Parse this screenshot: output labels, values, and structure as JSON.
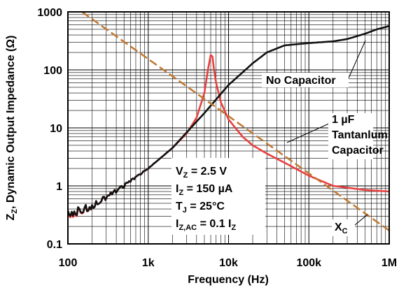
{
  "chart_data": {
    "type": "line",
    "xlabel": "Frequency (Hz)",
    "ylabel": "Z",
    "ylabel_sub": "Z",
    "ylabel_rest": ", Dynamic Output Impedance (Ω)",
    "x_scale": "log",
    "y_scale": "log",
    "xlim": [
      100,
      1000000
    ],
    "ylim": [
      0.1,
      1000
    ],
    "grid": true,
    "x_ticks": [
      {
        "value": 100,
        "label": "100"
      },
      {
        "value": 1000,
        "label": "1k"
      },
      {
        "value": 10000,
        "label": "10k"
      },
      {
        "value": 100000,
        "label": "100k"
      },
      {
        "value": 1000000,
        "label": "1M"
      }
    ],
    "y_ticks": [
      {
        "value": 0.1,
        "label": "0.1"
      },
      {
        "value": 1,
        "label": "1"
      },
      {
        "value": 10,
        "label": "10"
      },
      {
        "value": 100,
        "label": "100"
      },
      {
        "value": 1000,
        "label": "1000"
      }
    ],
    "series": [
      {
        "label": "1 µF Tantanlum Capacitor",
        "color": "#e8403f",
        "x": [
          100,
          200,
          500,
          1000,
          2000,
          3000,
          4000,
          5000,
          5600,
          6000,
          6300,
          6600,
          7000,
          8000,
          10000,
          15000,
          20000,
          30000,
          50000,
          100000,
          200000,
          500000,
          1000000
        ],
        "y": [
          0.3,
          0.45,
          1.0,
          2.0,
          4.5,
          8.0,
          15,
          40,
          110,
          180,
          170,
          100,
          60,
          28,
          14,
          7,
          5,
          3.6,
          2.5,
          1.5,
          1.0,
          0.85,
          0.8
        ]
      },
      {
        "label": "No Capacitor",
        "color": "#111111",
        "x": [
          100,
          200,
          500,
          1000,
          2000,
          5000,
          10000,
          20000,
          30000,
          50000,
          100000,
          200000,
          300000,
          500000,
          700000,
          1000000
        ],
        "y": [
          0.32,
          0.45,
          1.0,
          2.0,
          4.5,
          18,
          55,
          130,
          200,
          265,
          290,
          310,
          340,
          420,
          500,
          570
        ]
      },
      {
        "label": "X",
        "label_sub": "C",
        "color": "#c07830",
        "dashed": true,
        "x": [
          150,
          1000000
        ],
        "y": [
          1000,
          0.17
        ]
      }
    ],
    "annotations": {
      "no_cap": "No Capacitor",
      "tant_1": "1 µF",
      "tant_2": "Tantanlum",
      "tant_3": "Capacitor",
      "xc": "X",
      "xc_sub": "C"
    },
    "conditions": [
      {
        "main": "V",
        "sub": "Z",
        "rest": " = 2.5 V"
      },
      {
        "main": "I",
        "sub": "Z",
        "rest": " = 150 µA"
      },
      {
        "main": "T",
        "sub": "J",
        "rest": " = 25°C"
      },
      {
        "main": "I",
        "sub": "Z,AC",
        "rest": " = 0.1 I",
        "sub2": "Z"
      }
    ]
  }
}
